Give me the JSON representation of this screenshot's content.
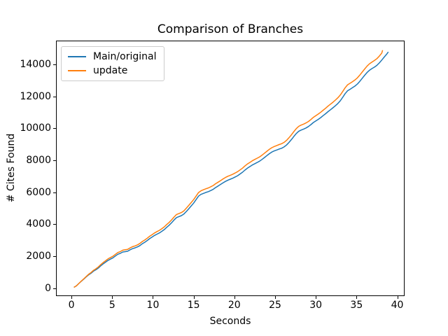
{
  "chart_data": {
    "type": "line",
    "title": "Comparison of Branches",
    "xlabel": "Seconds",
    "ylabel": "# Cites Found",
    "xlim": [
      -1.9,
      40.9
    ],
    "ylim": [
      -500,
      15500
    ],
    "xticks": [
      0,
      5,
      10,
      15,
      20,
      25,
      30,
      35,
      40
    ],
    "yticks": [
      0,
      2000,
      4000,
      6000,
      8000,
      10000,
      12000,
      14000
    ],
    "grid": false,
    "legend_position": "upper left",
    "series": [
      {
        "name": "Main/original",
        "color": "#1f77b4",
        "points": [
          [
            0.3,
            50
          ],
          [
            0.6,
            140
          ],
          [
            0.9,
            290
          ],
          [
            1.2,
            430
          ],
          [
            1.5,
            560
          ],
          [
            1.8,
            700
          ],
          [
            2.1,
            830
          ],
          [
            2.4,
            930
          ],
          [
            2.7,
            1060
          ],
          [
            3.0,
            1150
          ],
          [
            3.3,
            1260
          ],
          [
            3.6,
            1400
          ],
          [
            3.9,
            1520
          ],
          [
            4.2,
            1630
          ],
          [
            4.5,
            1740
          ],
          [
            4.8,
            1820
          ],
          [
            5.1,
            1900
          ],
          [
            5.4,
            2010
          ],
          [
            5.7,
            2120
          ],
          [
            6.0,
            2180
          ],
          [
            6.3,
            2260
          ],
          [
            6.6,
            2285
          ],
          [
            6.9,
            2310
          ],
          [
            7.2,
            2400
          ],
          [
            7.5,
            2470
          ],
          [
            7.8,
            2520
          ],
          [
            8.1,
            2580
          ],
          [
            8.4,
            2660
          ],
          [
            8.7,
            2780
          ],
          [
            9.0,
            2870
          ],
          [
            9.3,
            2980
          ],
          [
            9.6,
            3100
          ],
          [
            9.9,
            3200
          ],
          [
            10.2,
            3300
          ],
          [
            10.5,
            3380
          ],
          [
            10.8,
            3460
          ],
          [
            11.1,
            3560
          ],
          [
            11.4,
            3670
          ],
          [
            11.7,
            3810
          ],
          [
            12.0,
            3940
          ],
          [
            12.3,
            4100
          ],
          [
            12.6,
            4270
          ],
          [
            12.9,
            4420
          ],
          [
            13.2,
            4480
          ],
          [
            13.5,
            4540
          ],
          [
            13.8,
            4640
          ],
          [
            14.1,
            4800
          ],
          [
            14.4,
            4970
          ],
          [
            14.7,
            5140
          ],
          [
            15.0,
            5320
          ],
          [
            15.3,
            5540
          ],
          [
            15.6,
            5760
          ],
          [
            15.9,
            5870
          ],
          [
            16.2,
            5930
          ],
          [
            16.5,
            5990
          ],
          [
            16.8,
            6040
          ],
          [
            17.1,
            6110
          ],
          [
            17.4,
            6190
          ],
          [
            17.7,
            6300
          ],
          [
            18.0,
            6390
          ],
          [
            18.3,
            6490
          ],
          [
            18.6,
            6590
          ],
          [
            18.9,
            6680
          ],
          [
            19.2,
            6760
          ],
          [
            19.5,
            6820
          ],
          [
            19.8,
            6880
          ],
          [
            20.1,
            6960
          ],
          [
            20.4,
            7040
          ],
          [
            20.7,
            7150
          ],
          [
            21.0,
            7260
          ],
          [
            21.3,
            7390
          ],
          [
            21.6,
            7510
          ],
          [
            21.9,
            7610
          ],
          [
            22.2,
            7710
          ],
          [
            22.5,
            7790
          ],
          [
            22.8,
            7870
          ],
          [
            23.1,
            7950
          ],
          [
            23.4,
            8060
          ],
          [
            23.7,
            8180
          ],
          [
            24.0,
            8300
          ],
          [
            24.3,
            8420
          ],
          [
            24.6,
            8520
          ],
          [
            24.9,
            8590
          ],
          [
            25.2,
            8650
          ],
          [
            25.5,
            8710
          ],
          [
            25.8,
            8760
          ],
          [
            26.1,
            8840
          ],
          [
            26.4,
            8960
          ],
          [
            26.7,
            9120
          ],
          [
            27.0,
            9300
          ],
          [
            27.3,
            9500
          ],
          [
            27.6,
            9680
          ],
          [
            27.9,
            9820
          ],
          [
            28.2,
            9900
          ],
          [
            28.5,
            9960
          ],
          [
            28.8,
            10030
          ],
          [
            29.1,
            10120
          ],
          [
            29.4,
            10240
          ],
          [
            29.7,
            10370
          ],
          [
            30.0,
            10470
          ],
          [
            30.3,
            10570
          ],
          [
            30.6,
            10680
          ],
          [
            30.9,
            10800
          ],
          [
            31.2,
            10920
          ],
          [
            31.5,
            11050
          ],
          [
            31.8,
            11170
          ],
          [
            32.1,
            11290
          ],
          [
            32.4,
            11420
          ],
          [
            32.7,
            11560
          ],
          [
            33.0,
            11730
          ],
          [
            33.3,
            11950
          ],
          [
            33.6,
            12180
          ],
          [
            33.9,
            12360
          ],
          [
            34.2,
            12450
          ],
          [
            34.5,
            12550
          ],
          [
            34.8,
            12650
          ],
          [
            35.1,
            12780
          ],
          [
            35.4,
            12950
          ],
          [
            35.7,
            13140
          ],
          [
            36.0,
            13330
          ],
          [
            36.3,
            13510
          ],
          [
            36.6,
            13650
          ],
          [
            36.9,
            13750
          ],
          [
            37.2,
            13840
          ],
          [
            37.5,
            13950
          ],
          [
            37.8,
            14100
          ],
          [
            38.1,
            14280
          ],
          [
            38.4,
            14470
          ],
          [
            38.7,
            14650
          ],
          [
            38.9,
            14790
          ]
        ]
      },
      {
        "name": "update",
        "color": "#ff7f0e",
        "points": [
          [
            0.3,
            50
          ],
          [
            0.6,
            140
          ],
          [
            0.9,
            290
          ],
          [
            1.2,
            440
          ],
          [
            1.5,
            580
          ],
          [
            1.8,
            725
          ],
          [
            2.1,
            865
          ],
          [
            2.4,
            975
          ],
          [
            2.7,
            1115
          ],
          [
            3.0,
            1210
          ],
          [
            3.3,
            1330
          ],
          [
            3.6,
            1475
          ],
          [
            3.9,
            1605
          ],
          [
            4.2,
            1720
          ],
          [
            4.5,
            1835
          ],
          [
            4.8,
            1920
          ],
          [
            5.1,
            2000
          ],
          [
            5.4,
            2115
          ],
          [
            5.7,
            2230
          ],
          [
            6.0,
            2290
          ],
          [
            6.3,
            2375
          ],
          [
            6.6,
            2400
          ],
          [
            6.9,
            2430
          ],
          [
            7.2,
            2520
          ],
          [
            7.5,
            2595
          ],
          [
            7.8,
            2645
          ],
          [
            8.1,
            2710
          ],
          [
            8.4,
            2795
          ],
          [
            8.7,
            2920
          ],
          [
            9.0,
            3010
          ],
          [
            9.3,
            3125
          ],
          [
            9.6,
            3250
          ],
          [
            9.9,
            3350
          ],
          [
            10.2,
            3455
          ],
          [
            10.5,
            3540
          ],
          [
            10.8,
            3620
          ],
          [
            11.1,
            3725
          ],
          [
            11.4,
            3840
          ],
          [
            11.7,
            3985
          ],
          [
            12.0,
            4115
          ],
          [
            12.3,
            4280
          ],
          [
            12.6,
            4455
          ],
          [
            12.9,
            4610
          ],
          [
            13.2,
            4670
          ],
          [
            13.5,
            4735
          ],
          [
            13.8,
            4840
          ],
          [
            14.1,
            5005
          ],
          [
            14.4,
            5180
          ],
          [
            14.7,
            5355
          ],
          [
            15.0,
            5540
          ],
          [
            15.3,
            5760
          ],
          [
            15.6,
            5985
          ],
          [
            15.9,
            6095
          ],
          [
            16.2,
            6160
          ],
          [
            16.5,
            6220
          ],
          [
            16.8,
            6272
          ],
          [
            17.1,
            6345
          ],
          [
            17.4,
            6425
          ],
          [
            17.7,
            6538
          ],
          [
            18.0,
            6630
          ],
          [
            18.3,
            6730
          ],
          [
            18.6,
            6832
          ],
          [
            18.9,
            6925
          ],
          [
            19.2,
            7005
          ],
          [
            19.5,
            7068
          ],
          [
            19.8,
            7130
          ],
          [
            20.1,
            7210
          ],
          [
            20.4,
            7292
          ],
          [
            20.7,
            7405
          ],
          [
            21.0,
            7515
          ],
          [
            21.3,
            7648
          ],
          [
            21.6,
            7770
          ],
          [
            21.9,
            7870
          ],
          [
            22.2,
            7972
          ],
          [
            22.5,
            8055
          ],
          [
            22.8,
            8135
          ],
          [
            23.1,
            8218
          ],
          [
            23.4,
            8328
          ],
          [
            23.7,
            8450
          ],
          [
            24.0,
            8572
          ],
          [
            24.3,
            8695
          ],
          [
            24.6,
            8795
          ],
          [
            24.9,
            8868
          ],
          [
            25.2,
            8930
          ],
          [
            25.5,
            8992
          ],
          [
            25.8,
            9045
          ],
          [
            26.1,
            9128
          ],
          [
            26.4,
            9250
          ],
          [
            26.7,
            9415
          ],
          [
            27.0,
            9600
          ],
          [
            27.3,
            9802
          ],
          [
            27.6,
            9985
          ],
          [
            27.9,
            10128
          ],
          [
            28.2,
            10210
          ],
          [
            28.5,
            10272
          ],
          [
            28.8,
            10345
          ],
          [
            29.1,
            10438
          ],
          [
            29.4,
            10560
          ],
          [
            29.7,
            10695
          ],
          [
            30.0,
            10800
          ],
          [
            30.3,
            10902
          ],
          [
            30.6,
            11015
          ],
          [
            30.9,
            11138
          ],
          [
            31.2,
            11260
          ],
          [
            31.5,
            11395
          ],
          [
            31.8,
            11518
          ],
          [
            32.1,
            11640
          ],
          [
            32.4,
            11775
          ],
          [
            32.7,
            11918
          ],
          [
            33.0,
            12090
          ],
          [
            33.3,
            12315
          ],
          [
            33.6,
            12550
          ],
          [
            33.9,
            12732
          ],
          [
            34.2,
            12825
          ],
          [
            34.5,
            12928
          ],
          [
            34.8,
            13030
          ],
          [
            35.1,
            13165
          ],
          [
            35.4,
            13338
          ],
          [
            35.7,
            13530
          ],
          [
            36.0,
            13725
          ],
          [
            36.3,
            13910
          ],
          [
            36.6,
            14055
          ],
          [
            36.9,
            14160
          ],
          [
            37.2,
            14255
          ],
          [
            37.5,
            14370
          ],
          [
            37.8,
            14530
          ],
          [
            38.1,
            14720
          ],
          [
            38.2,
            14900
          ]
        ]
      }
    ]
  }
}
